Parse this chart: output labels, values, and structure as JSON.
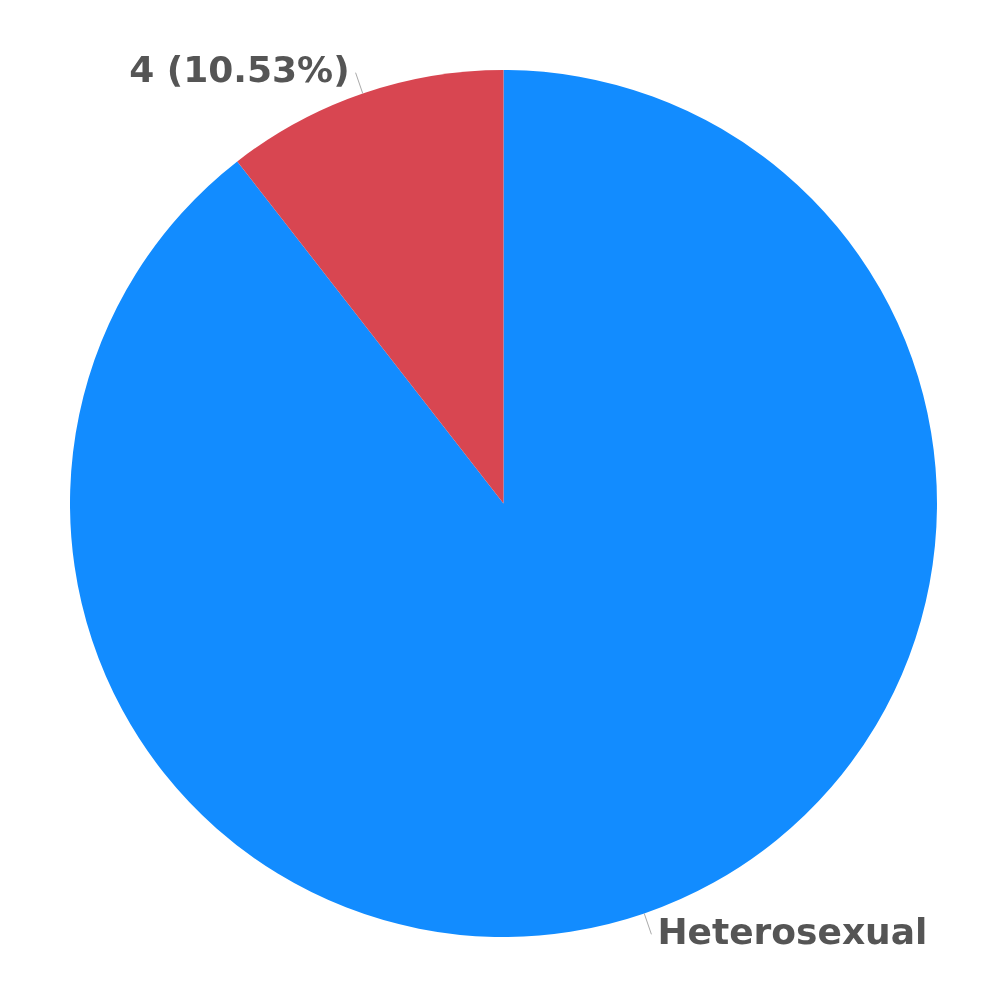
{
  "chart_data": {
    "type": "pie",
    "categories": [
      "Heterosexual",
      null
    ],
    "values": [
      34,
      4
    ],
    "colors": [
      "#128cff",
      "#d84651"
    ],
    "value_labels": [
      null,
      "4 (10.53%)"
    ],
    "legend": false
  }
}
